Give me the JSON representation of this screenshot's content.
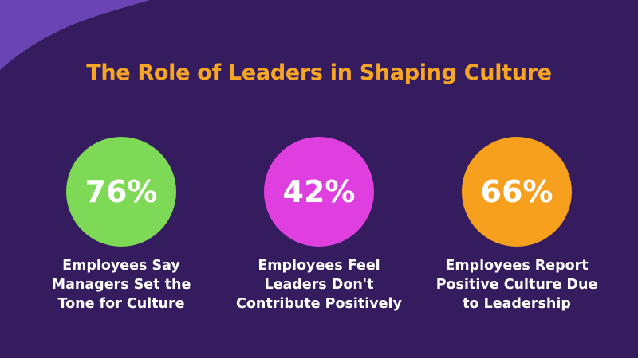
{
  "colors": {
    "background": "#351c5f",
    "accent_shape": "#6a44b4",
    "title": "#f6a623"
  },
  "title": "The Role of Leaders in Shaping Culture",
  "stats": [
    {
      "value": "76%",
      "percent": 76,
      "color": "#7ed957",
      "label_lines": [
        "Employees Say",
        "Managers Set the",
        "Tone for Culture"
      ]
    },
    {
      "value": "42%",
      "percent": 42,
      "color": "#e03fe0",
      "label_lines": [
        "Employees Feel",
        "Leaders Don't",
        "Contribute Positively"
      ]
    },
    {
      "value": "66%",
      "percent": 66,
      "color": "#f7a01e",
      "label_lines": [
        "Employees Report",
        "Positive Culture Due",
        "to Leadership"
      ]
    }
  ]
}
